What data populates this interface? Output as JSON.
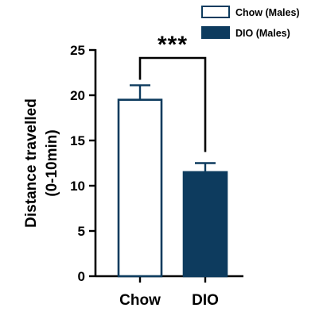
{
  "chart_data": {
    "type": "bar",
    "categories": [
      "Chow",
      "DIO"
    ],
    "series": [
      {
        "name": "Chow (Males)",
        "values": [
          19.5,
          null
        ],
        "error": [
          1.6,
          null
        ],
        "fill": "#ffffff",
        "stroke": "#0d3b5e"
      },
      {
        "name": "DIO (Males)",
        "values": [
          null,
          11.5
        ],
        "error": [
          null,
          1.0
        ],
        "fill": "#0d3b5e",
        "stroke": "#0d3b5e"
      }
    ],
    "ylabel_lines": [
      "Distance travelled",
      "(0-10min)"
    ],
    "xlabel": "",
    "ylim": [
      0,
      25
    ],
    "yticks": [
      0,
      5,
      10,
      15,
      20,
      25
    ],
    "significance": "***",
    "legend_position": "top-right",
    "grid": false
  }
}
